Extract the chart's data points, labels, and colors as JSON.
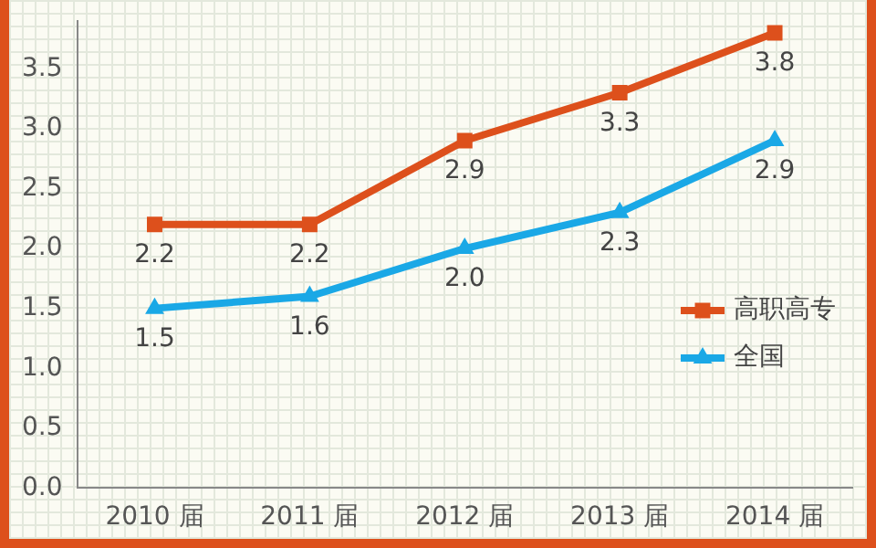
{
  "chart_data": {
    "type": "line",
    "categories": [
      "2010 届",
      "2011 届",
      "2012 届",
      "2013 届",
      "2014 届"
    ],
    "series": [
      {
        "name": "高职高专",
        "color": "#dd501c",
        "values": [
          2.2,
          2.2,
          2.9,
          3.3,
          3.8
        ],
        "value_labels": [
          "2.2",
          "2.2",
          "2.9",
          "3.3",
          "3.8"
        ],
        "marker": "square"
      },
      {
        "name": "全国",
        "color": "#1aa8e6",
        "values": [
          1.5,
          1.6,
          2.0,
          2.3,
          2.9
        ],
        "value_labels": [
          "1.5",
          "1.6",
          "2.0",
          "2.3",
          "2.9"
        ],
        "marker": "triangle"
      }
    ],
    "ylim": [
      0,
      3.9
    ],
    "yticks": [
      {
        "value": 0,
        "label": "0.0"
      },
      0.5,
      {
        "value": 1,
        "label": "1.0"
      },
      1.5,
      {
        "value": 2,
        "label": "2.0"
      },
      2.5,
      {
        "value": 3,
        "label": "3.0"
      },
      3.5
    ],
    "legend": "right",
    "grid": false
  }
}
